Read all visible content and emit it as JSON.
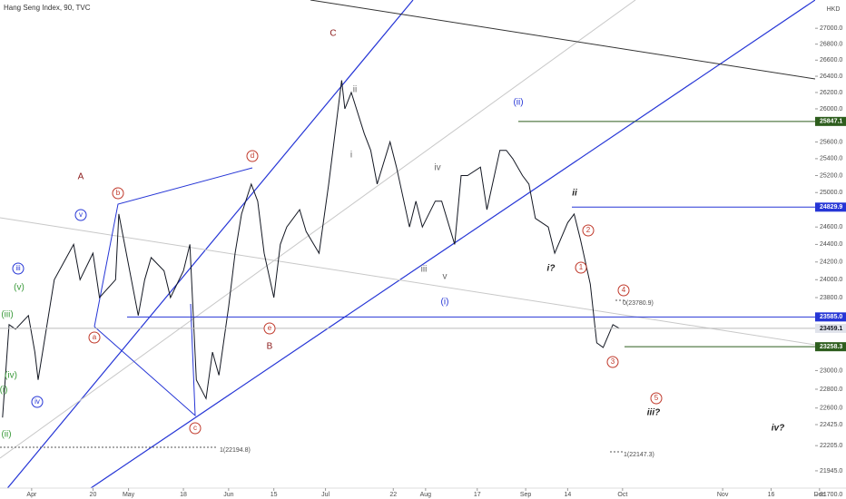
{
  "chart_data": {
    "type": "line",
    "title": "Hang Seng Index, 90, TVC",
    "currency": "HKD",
    "log_scale": true,
    "color": "#131722",
    "x": [
      83,
      85,
      87,
      91,
      93,
      94,
      99,
      105,
      107,
      111,
      113,
      118,
      119,
      125,
      127,
      129,
      133,
      135,
      139,
      141,
      143,
      146,
      148,
      150,
      153,
      155,
      157,
      160,
      162,
      164,
      167,
      169,
      171,
      175,
      177,
      181,
      184,
      188,
      189,
      191,
      195,
      197,
      199,
      203,
      205,
      209,
      211,
      213,
      217,
      219,
      223,
      225,
      227,
      231,
      233,
      237,
      239,
      241,
      244,
      246,
      248,
      252,
      254,
      258,
      260,
      262,
      265,
      267,
      269,
      272,
      274
    ],
    "values": [
      22500,
      23500,
      23450,
      23600,
      23200,
      22900,
      24000,
      24400,
      24000,
      24300,
      23800,
      24000,
      24750,
      23600,
      24000,
      24250,
      24100,
      23800,
      24100,
      24400,
      22900,
      22700,
      23200,
      22950,
      23700,
      24300,
      24750,
      25100,
      24900,
      24300,
      23800,
      24400,
      24600,
      24800,
      24550,
      24300,
      25100,
      26350,
      26000,
      26200,
      25700,
      25500,
      25100,
      25600,
      25300,
      24600,
      24900,
      24600,
      24900,
      24900,
      24400,
      25200,
      25200,
      25300,
      24800,
      25500,
      25500,
      25400,
      25200,
      25100,
      24700,
      24600,
      24300,
      24650,
      24750,
      24450,
      23950,
      23300,
      23250,
      23500,
      23459.1
    ],
    "xlim": [
      82.2,
      344.2
    ],
    "ylim": [
      21657,
      27360
    ],
    "xticks": [
      {
        "value": 92,
        "label": "Apr"
      },
      {
        "value": 111,
        "label": "20"
      },
      {
        "value": 122,
        "label": "May"
      },
      {
        "value": 139,
        "label": "18"
      },
      {
        "value": 153,
        "label": "Jun"
      },
      {
        "value": 167,
        "label": "15"
      },
      {
        "value": 183,
        "label": "Jul"
      },
      {
        "value": 204,
        "label": "22"
      },
      {
        "value": 214,
        "label": "Aug"
      },
      {
        "value": 230,
        "label": "17"
      },
      {
        "value": 245,
        "label": "Sep"
      },
      {
        "value": 258,
        "label": "14"
      },
      {
        "value": 275,
        "label": "Oct"
      },
      {
        "value": 306,
        "label": "Nov"
      },
      {
        "value": 321,
        "label": "16"
      },
      {
        "value": 336,
        "label": "Dec"
      }
    ],
    "yticks": [
      {
        "value": 27000,
        "label": "27000.0"
      },
      {
        "value": 26800,
        "label": "26800.0"
      },
      {
        "value": 26600,
        "label": "26600.0"
      },
      {
        "value": 26400,
        "label": "26400.0"
      },
      {
        "value": 26200,
        "label": "26200.0"
      },
      {
        "value": 26000,
        "label": "26000.0"
      },
      {
        "value": 25600,
        "label": "25600.0"
      },
      {
        "value": 25400,
        "label": "25400.0"
      },
      {
        "value": 25200,
        "label": "25200.0"
      },
      {
        "value": 25000,
        "label": "25000.0"
      },
      {
        "value": 24600,
        "label": "24600.0"
      },
      {
        "value": 24400,
        "label": "24400.0"
      },
      {
        "value": 24200,
        "label": "24200.0"
      },
      {
        "value": 24000,
        "label": "24000.0"
      },
      {
        "value": 23800,
        "label": "23800.0"
      },
      {
        "value": 23000,
        "label": "23000.0"
      },
      {
        "value": 22800,
        "label": "22800.0"
      },
      {
        "value": 22600,
        "label": "22600.0"
      },
      {
        "value": 22425,
        "label": "22425.0"
      },
      {
        "value": 22205,
        "label": "22205.0"
      },
      {
        "value": 21945,
        "label": "21945.0"
      },
      {
        "value": 21700,
        "label": "21700.0"
      }
    ],
    "price_levels": [
      {
        "value": 25847.1,
        "label": "25847.1",
        "color": "#2e5e1e"
      },
      {
        "value": 24829.9,
        "label": "24829.9",
        "color": "#2636d6"
      },
      {
        "value": 23585.0,
        "label": "23585.0",
        "color": "#2636d6"
      },
      {
        "value": 23459.1,
        "label": "23459.1",
        "color": "#e0e3eb"
      },
      {
        "value": 23258.3,
        "label": "23258.3",
        "color": "#2e5e1e"
      }
    ],
    "fib_labels": [
      "0(23780.9)",
      "1(22194.8)",
      "1(22147.3)"
    ],
    "annotations": [
      "A",
      "b",
      "d",
      "C",
      "ii",
      "i",
      "iv",
      "iii",
      "v",
      "(ii)",
      "(i)",
      "ii",
      "i?",
      "1",
      "2",
      "3",
      "4",
      "5",
      "iii?",
      "iv?",
      "e",
      "B",
      "a",
      "c",
      "v",
      "iii",
      "iv",
      "(v)",
      "(iii)",
      "(iv)",
      "(i)",
      "(ii)"
    ]
  }
}
